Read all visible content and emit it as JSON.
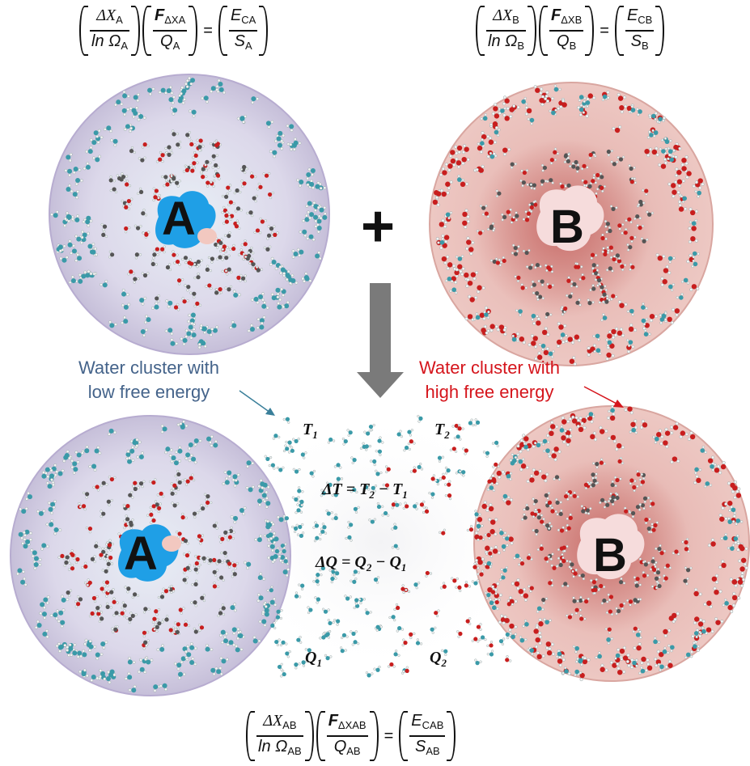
{
  "equations": {
    "top_left": {
      "num1": "ΔX",
      "num1_sub": "A",
      "den1": "ln Ω",
      "den1_sub": "A",
      "num2": "F",
      "num2_sub": "ΔXA",
      "den2": "Q",
      "den2_sub": "A",
      "num3": "E",
      "num3_sub": "CA",
      "den3": "S",
      "den3_sub": "A"
    },
    "top_right": {
      "num1": "ΔX",
      "num1_sub": "B",
      "den1": "ln Ω",
      "den1_sub": "B",
      "num2": "F",
      "num2_sub": "ΔXB",
      "den2": "Q",
      "den2_sub": "B",
      "num3": "E",
      "num3_sub": "CB",
      "den3": "S",
      "den3_sub": "B"
    },
    "bottom": {
      "num1": "ΔX",
      "num1_sub": "AB",
      "den1": "ln Ω",
      "den1_sub": "AB",
      "num2": "F",
      "num2_sub": "ΔXAB",
      "den2": "Q",
      "den2_sub": "AB",
      "num3": "E",
      "num3_sub": "CAB",
      "den3": "S",
      "den3_sub": "AB"
    }
  },
  "solutes": {
    "a": "A",
    "b": "B"
  },
  "operator": "+",
  "labels": {
    "low": [
      "Water cluster with",
      "low free energy"
    ],
    "high": [
      "Water cluster with",
      "high free energy"
    ]
  },
  "bridge": {
    "t1": "T",
    "t1_sub": "1",
    "t2": "T",
    "t2_sub": "2",
    "delta_t_lhs": "ΔT = T",
    "delta_t_sub2": "2",
    "delta_t_mid": " − T",
    "delta_t_sub1": "1",
    "delta_q_lhs": "ΔQ = Q",
    "delta_q_sub2": "2",
    "delta_q_mid": " − Q",
    "delta_q_sub1": "1",
    "q1": "Q",
    "q1_sub": "1",
    "q2": "Q",
    "q2_sub": "2"
  },
  "colors": {
    "low_text": "#44638a",
    "high_text": "#d5151c",
    "sphere_a": "#c9c3dc",
    "sphere_b": "#e7b8b4",
    "water_blue": "#3a9aa8",
    "water_red": "#c81e1e",
    "solute_a": "#1f9fe6",
    "solute_b": "#f6dcdc",
    "arrow": "#777777"
  }
}
